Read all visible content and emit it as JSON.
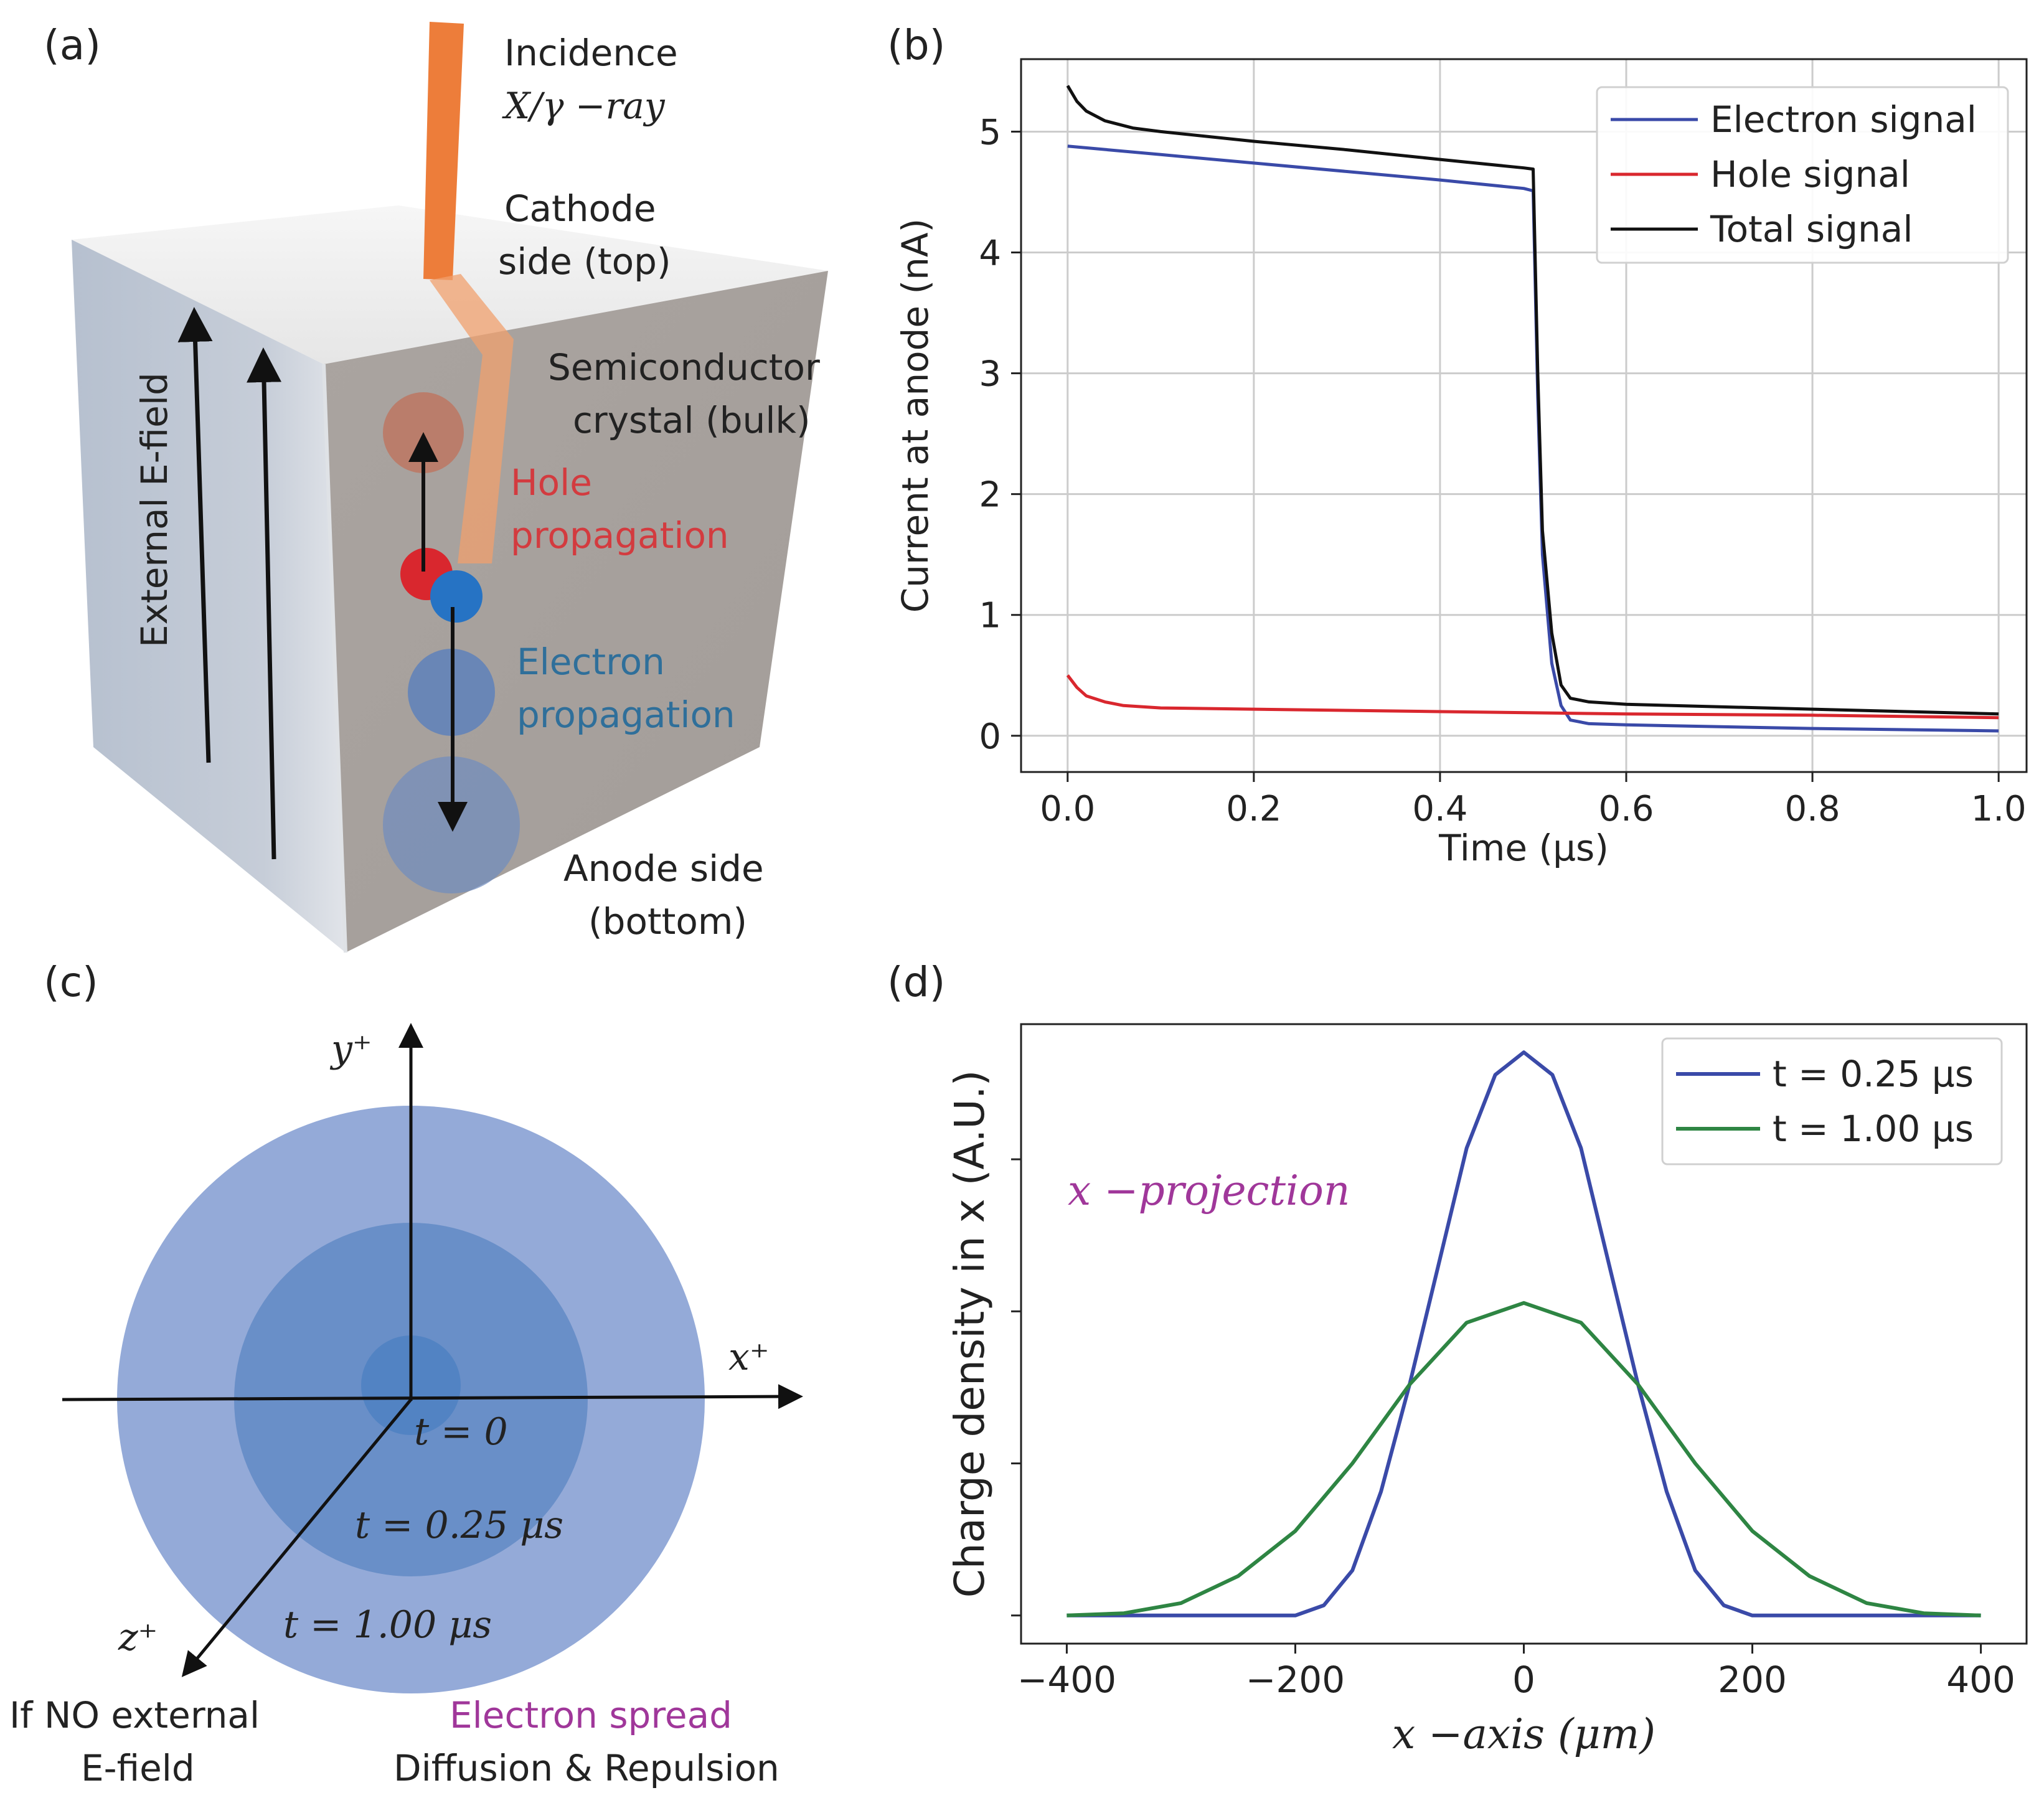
{
  "panel_a": {
    "label": "(a)",
    "incidence_line1": "Incidence",
    "incidence_line2": "X/γ −ray",
    "cathode_line1": "Cathode",
    "cathode_line2": "side (top)",
    "semiconductor_line1": "Semiconductor",
    "semiconductor_line2": "crystal (bulk)",
    "hole_line1": "Hole",
    "hole_line2": "propagation",
    "electron_line1": "Electron",
    "electron_line2": "propagation",
    "anode_line1": "Anode side",
    "anode_line2": "(bottom)",
    "efield": "External E-field",
    "colors": {
      "ray": "#ed7d3a",
      "hole": "#d9272e",
      "electron": "#2673c4",
      "hole_text": "#d33b3f",
      "electron_text": "#2f6f9a"
    }
  },
  "panel_b": {
    "label": "(b)"
  },
  "panel_c": {
    "label": "(c)",
    "y_axis": "y⁺",
    "x_axis": "x⁺",
    "z_axis": "z⁺",
    "t0": "t = 0",
    "t1": "t = 0.25 μs",
    "t2": "t = 1.00 μs",
    "no_field_line1": "If NO external",
    "no_field_line2": "E-field",
    "spread_title": "Electron spread",
    "spread_sub": "Diffusion & Repulsion",
    "colors": {
      "spread_text": "#a0379a"
    }
  },
  "panel_d": {
    "label": "(d)",
    "annotation": "x −projection"
  },
  "chart_data": [
    {
      "type": "line",
      "panel": "b",
      "title": "",
      "xlabel": "Time (μs)",
      "ylabel": "Current at anode (nA)",
      "xlim": [
        -0.05,
        1.03
      ],
      "ylim": [
        -0.3,
        5.6
      ],
      "xticks": [
        0.0,
        0.2,
        0.4,
        0.6,
        0.8,
        1.0
      ],
      "xtick_labels": [
        "0.0",
        "0.2",
        "0.4",
        "0.6",
        "0.8",
        "1.0"
      ],
      "yticks": [
        0,
        1,
        2,
        3,
        4,
        5
      ],
      "ytick_labels": [
        "0",
        "1",
        "2",
        "3",
        "4",
        "5"
      ],
      "grid": true,
      "legend": "top-right",
      "series": [
        {
          "name": "Electron signal",
          "color": "#3a4aa8",
          "x": [
            0.0,
            0.1,
            0.2,
            0.3,
            0.4,
            0.49,
            0.5,
            0.505,
            0.51,
            0.52,
            0.53,
            0.54,
            0.56,
            0.6,
            0.8,
            1.0
          ],
          "y": [
            4.88,
            4.81,
            4.74,
            4.67,
            4.6,
            4.53,
            4.51,
            2.8,
            1.5,
            0.6,
            0.25,
            0.13,
            0.1,
            0.09,
            0.06,
            0.04
          ]
        },
        {
          "name": "Hole signal",
          "color": "#d9272e",
          "x": [
            0.0,
            0.01,
            0.02,
            0.04,
            0.06,
            0.1,
            0.2,
            0.4,
            0.6,
            0.8,
            1.0
          ],
          "y": [
            0.5,
            0.4,
            0.33,
            0.28,
            0.25,
            0.23,
            0.22,
            0.2,
            0.18,
            0.17,
            0.15
          ]
        },
        {
          "name": "Total signal",
          "color": "#111111",
          "x": [
            0.0,
            0.01,
            0.02,
            0.04,
            0.07,
            0.1,
            0.2,
            0.3,
            0.4,
            0.49,
            0.5,
            0.505,
            0.51,
            0.52,
            0.53,
            0.54,
            0.56,
            0.6,
            0.8,
            1.0
          ],
          "y": [
            5.38,
            5.25,
            5.17,
            5.09,
            5.03,
            5.0,
            4.92,
            4.85,
            4.77,
            4.7,
            4.69,
            3.0,
            1.7,
            0.85,
            0.42,
            0.31,
            0.28,
            0.26,
            0.22,
            0.18
          ]
        }
      ]
    },
    {
      "type": "line",
      "panel": "d",
      "title": "",
      "xlabel": "x −axis (μm)",
      "ylabel": "Charge density in x (A.U.)",
      "xlim": [
        -440,
        440
      ],
      "ylim": [
        -0.05,
        1.05
      ],
      "xticks": [
        -400,
        -200,
        0,
        200,
        400
      ],
      "xtick_labels": [
        "−400",
        "−200",
        "0",
        "200",
        "400"
      ],
      "yticks": [
        0,
        0.27,
        0.54,
        0.81
      ],
      "ytick_labels": [],
      "grid": false,
      "legend": "top-right",
      "series": [
        {
          "name": "t = 0.25 μs",
          "color": "#3a4aa8",
          "x": [
            -400,
            -300,
            -200,
            -175,
            -150,
            -125,
            -100,
            -75,
            -50,
            -25,
            0,
            25,
            50,
            75,
            100,
            125,
            150,
            175,
            200,
            300,
            400
          ],
          "y": [
            0.0,
            0.0,
            0.0,
            0.018,
            0.08,
            0.22,
            0.41,
            0.62,
            0.83,
            0.96,
            1.0,
            0.96,
            0.83,
            0.62,
            0.41,
            0.22,
            0.08,
            0.018,
            0.0,
            0.0,
            0.0
          ]
        },
        {
          "name": "t = 1.00 μs",
          "color": "#2e8543",
          "x": [
            -400,
            -350,
            -300,
            -250,
            -200,
            -150,
            -100,
            -50,
            0,
            50,
            100,
            150,
            200,
            250,
            300,
            350,
            400
          ],
          "y": [
            0.0,
            0.004,
            0.022,
            0.07,
            0.15,
            0.27,
            0.41,
            0.52,
            0.555,
            0.52,
            0.41,
            0.27,
            0.15,
            0.07,
            0.022,
            0.004,
            0.0
          ]
        }
      ]
    }
  ]
}
